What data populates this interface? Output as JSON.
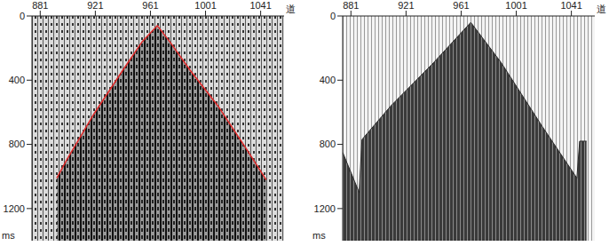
{
  "chart_data": [
    {
      "type": "line",
      "color": "#e02828",
      "x": [
        893,
        900,
        920,
        940,
        955,
        966,
        975,
        990,
        1010,
        1030,
        1045
      ],
      "values": [
        1010,
        900,
        610,
        350,
        160,
        60,
        160,
        340,
        560,
        820,
        1020
      ],
      "xlim": [
        875,
        1058
      ],
      "xticks": [
        881,
        921,
        961,
        1001,
        1041
      ],
      "ylim": [
        0,
        1400
      ],
      "yticks": [
        0,
        400,
        800,
        1200
      ],
      "x_label": "道",
      "y_label": "ms"
    },
    {
      "type": "area",
      "color": "#2a2a2a",
      "x": [
        875,
        887,
        889,
        910,
        940,
        968,
        990,
        1020,
        1045,
        1047,
        1052
      ],
      "values": [
        850,
        1100,
        770,
        560,
        300,
        40,
        290,
        690,
        1010,
        780,
        780
      ],
      "xlim": [
        875,
        1058
      ],
      "xticks": [
        881,
        921,
        961,
        1001,
        1041
      ],
      "ylim": [
        0,
        1400
      ],
      "yticks": [
        0,
        400,
        800,
        1200
      ],
      "x_label": "道",
      "y_label": "ms"
    }
  ]
}
